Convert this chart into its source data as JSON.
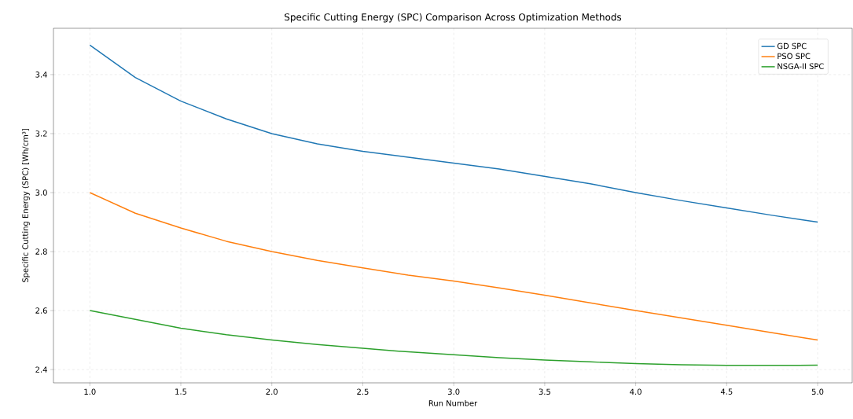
{
  "chart_data": {
    "type": "line",
    "title": "Specific Cutting Energy (SPC) Comparison Across Optimization Methods",
    "xlabel": "Run Number",
    "ylabel": "Specific Cutting Energy (SPC) [Wh/cm³]",
    "x": [
      1,
      1.25,
      1.5,
      1.75,
      2,
      2.25,
      2.5,
      2.75,
      3,
      3.25,
      3.5,
      3.75,
      4,
      4.25,
      4.5,
      4.75,
      5
    ],
    "series": [
      {
        "name": "GD SPC",
        "color": "#1f77b4",
        "values": [
          3.5,
          3.39,
          3.31,
          3.25,
          3.2,
          3.165,
          3.14,
          3.12,
          3.1,
          3.08,
          3.055,
          3.03,
          3.0,
          2.973,
          2.948,
          2.923,
          2.9
        ]
      },
      {
        "name": "PSO SPC",
        "color": "#ff7f0e",
        "values": [
          3.0,
          2.93,
          2.88,
          2.835,
          2.8,
          2.77,
          2.745,
          2.72,
          2.7,
          2.677,
          2.652,
          2.626,
          2.6,
          2.575,
          2.55,
          2.525,
          2.5
        ]
      },
      {
        "name": "NSGA-II SPC",
        "color": "#2ca02c",
        "values": [
          2.6,
          2.57,
          2.54,
          2.518,
          2.5,
          2.485,
          2.472,
          2.46,
          2.45,
          2.44,
          2.432,
          2.426,
          2.42,
          2.416,
          2.414,
          2.414,
          2.415
        ]
      }
    ],
    "xlim": [
      0.8,
      5.19
    ],
    "ylim": [
      2.355,
      3.557
    ],
    "xticks": [
      {
        "value": 1,
        "label": "1.0"
      },
      1.5,
      {
        "value": 2,
        "label": "2.0"
      },
      2.5,
      {
        "value": 3,
        "label": "3.0"
      },
      3.5,
      {
        "value": 4,
        "label": "4.0"
      },
      4.5,
      {
        "value": 5,
        "label": "5.0"
      }
    ],
    "yticks": [
      2.4,
      2.6,
      2.8,
      {
        "value": 3,
        "label": "3.0"
      },
      3.2,
      3.4
    ],
    "grid": true,
    "legend": "top right",
    "marker": "none",
    "line_style": "solid"
  }
}
